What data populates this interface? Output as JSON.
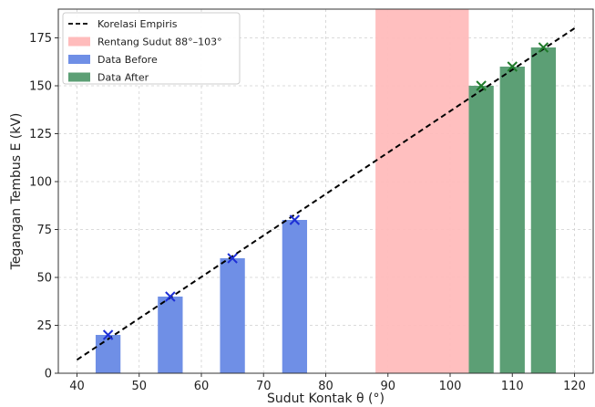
{
  "chart_data": {
    "type": "bar",
    "xlabel": "Sudut Kontak θ (°)",
    "ylabel": "Tegangan Tembus E (kV)",
    "xlim": [
      37,
      123
    ],
    "ylim": [
      0,
      190
    ],
    "xticks": [
      40,
      50,
      60,
      70,
      80,
      90,
      100,
      110,
      120
    ],
    "yticks": [
      0,
      25,
      50,
      75,
      100,
      125,
      150,
      175
    ],
    "grid": true,
    "legend_position": "top-left",
    "bar_width_units": 4,
    "series": [
      {
        "name": "Data Before",
        "color": "#6f8fe6",
        "marker_color": "#1d2fd6",
        "x": [
          45,
          55,
          65,
          75
        ],
        "values": [
          20,
          40,
          60,
          80
        ]
      },
      {
        "name": "Data After",
        "color": "#5c9f75",
        "marker_color": "#1f7a2a",
        "x": [
          105,
          110,
          115
        ],
        "values": [
          150,
          160,
          170
        ]
      }
    ],
    "line": {
      "name": "Korelasi Empiris",
      "style": "dashed",
      "color": "#000000",
      "x": [
        40,
        120
      ],
      "y": [
        7,
        180
      ]
    },
    "band": {
      "name": "Rentang Sudut 88°–103°",
      "x_range": [
        88,
        103
      ],
      "color": "#ffbcbc"
    }
  }
}
